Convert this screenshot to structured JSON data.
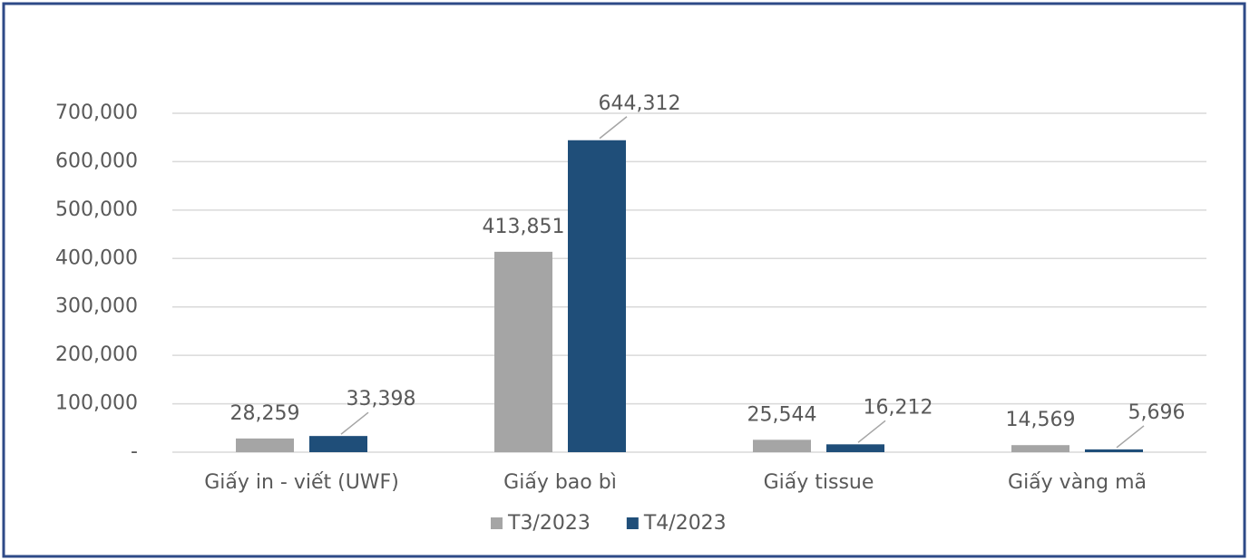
{
  "chart_data": {
    "type": "bar",
    "categories": [
      "Giấy in - viết (UWF)",
      "Giấy bao bì",
      "Giấy tissue",
      "Giấy vàng mã"
    ],
    "series": [
      {
        "name": "T3/2023",
        "color": "#a5a5a5",
        "values": [
          28259,
          413851,
          25544,
          14569
        ],
        "value_labels": [
          "28,259",
          "413,851",
          "25,544",
          "14,569"
        ]
      },
      {
        "name": "T4/2023",
        "color": "#1f4e79",
        "values": [
          33398,
          644312,
          16212,
          5696
        ],
        "value_labels": [
          "33,398",
          "644,312",
          "16,212",
          "5,696"
        ]
      }
    ],
    "ylim": [
      0,
      700000
    ],
    "yticks": [
      {
        "value": 0,
        "label": "-"
      },
      {
        "value": 100000,
        "label": "100,000"
      },
      {
        "value": 200000,
        "label": "200,000"
      },
      {
        "value": 300000,
        "label": "300,000"
      },
      {
        "value": 400000,
        "label": "400,000"
      },
      {
        "value": 500000,
        "label": "500,000"
      },
      {
        "value": 600000,
        "label": "600,000"
      },
      {
        "value": 700000,
        "label": "700,000"
      }
    ],
    "grid": true,
    "legend": "bottom"
  }
}
